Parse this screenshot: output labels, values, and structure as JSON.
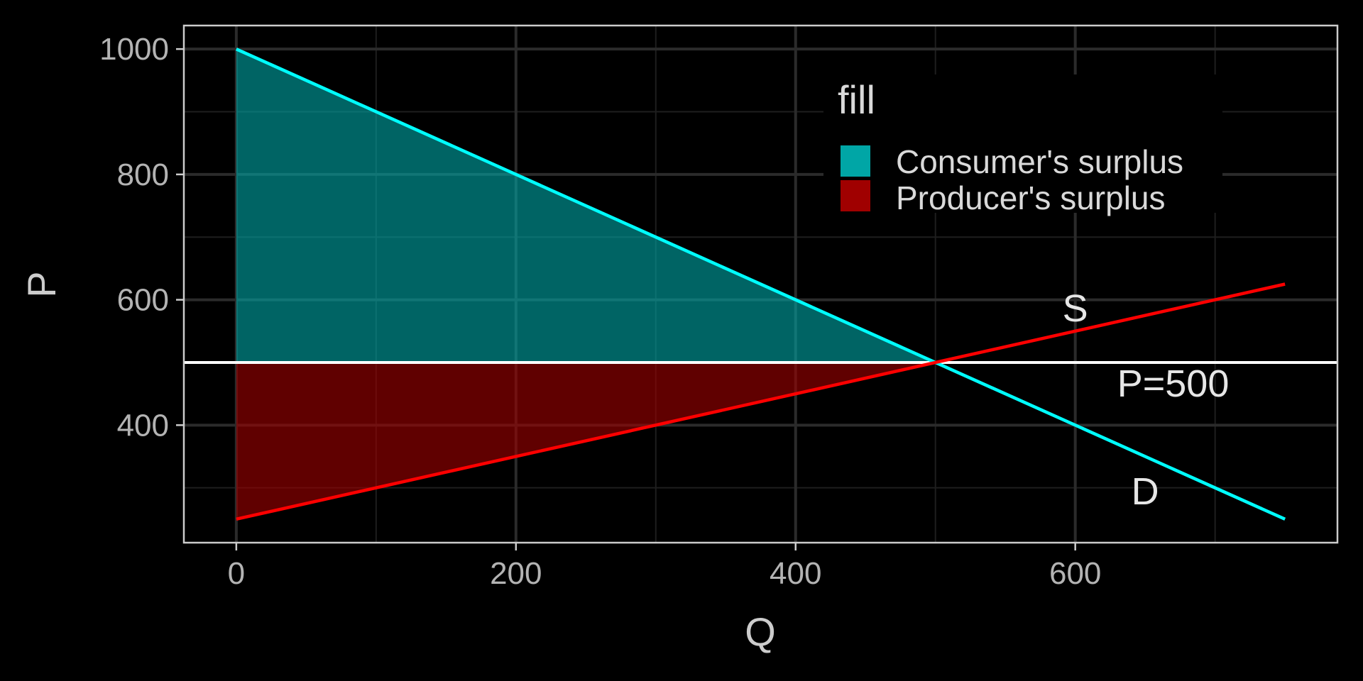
{
  "chart_data": {
    "type": "line",
    "xlabel": "Q",
    "ylabel": "P",
    "xlim": [
      -37.5,
      787.5
    ],
    "ylim": [
      212.5,
      1037.5
    ],
    "x_ticks": [
      0,
      200,
      400,
      600
    ],
    "x_tick_labels": [
      "0",
      "200",
      "400",
      "600"
    ],
    "x_minor": [
      100,
      300,
      500,
      700
    ],
    "y_ticks": [
      400,
      600,
      800,
      1000
    ],
    "y_tick_labels": [
      "400",
      "600",
      "800",
      "1000"
    ],
    "y_minor": [
      300,
      500,
      700,
      900
    ],
    "grid": true,
    "series": [
      {
        "name": "D",
        "x": [
          0,
          750
        ],
        "y": [
          1000,
          250
        ],
        "color": "#00ffff"
      },
      {
        "name": "S",
        "x": [
          0,
          750
        ],
        "y": [
          250,
          625
        ],
        "color": "#ff0000"
      }
    ],
    "hline": {
      "y": 500,
      "label": "P=500",
      "color": "#ffffff"
    },
    "areas": [
      {
        "name": "Consumer's surplus",
        "color": "#00a6a6",
        "points": [
          [
            0,
            500
          ],
          [
            0,
            1000
          ],
          [
            500,
            500
          ]
        ]
      },
      {
        "name": "Producer's surplus",
        "color": "#a00000",
        "points": [
          [
            0,
            500
          ],
          [
            0,
            250
          ],
          [
            500,
            500
          ]
        ]
      }
    ],
    "annotations": [
      {
        "text": "S",
        "x": 600,
        "y": 587
      },
      {
        "text": "D",
        "x": 650,
        "y": 295
      },
      {
        "text": "P=500",
        "x": 670,
        "y": 467
      }
    ],
    "legend": {
      "title": "fill",
      "position": "top-right",
      "entries": [
        {
          "label": "Consumer's surplus",
          "color": "#00a6a6"
        },
        {
          "label": "Producer's surplus",
          "color": "#a00000"
        }
      ]
    }
  }
}
